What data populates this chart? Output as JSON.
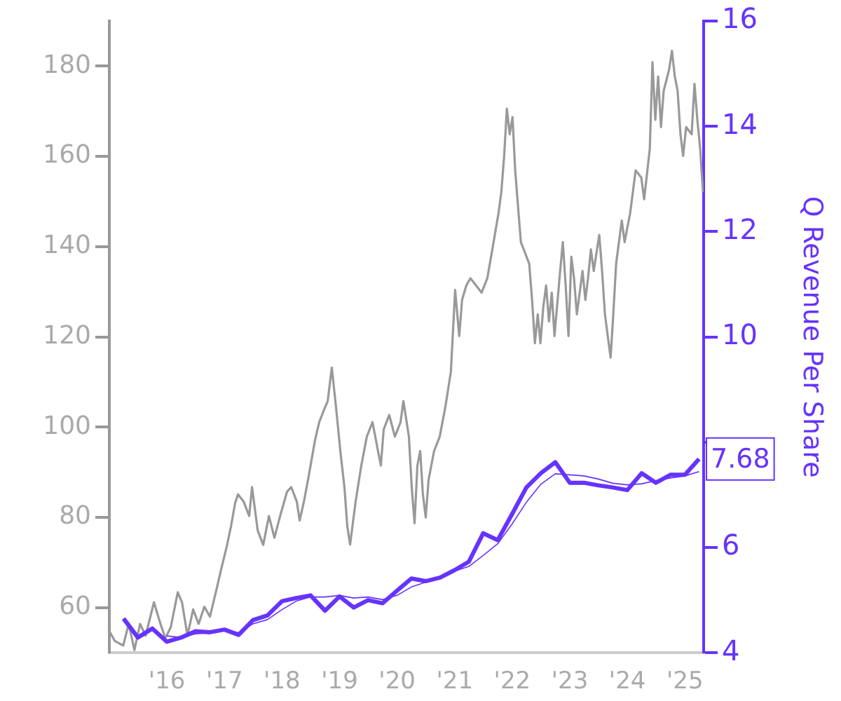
{
  "chart_data": {
    "type": "line",
    "y2label": "Q Revenue Per Share",
    "legend": false,
    "grid": false,
    "marker": "none",
    "xlim": [
      "2015-01-01",
      "2025-04-30"
    ],
    "xticks": [
      {
        "value": "2015-01-01",
        "label": null
      },
      {
        "value": "2016-01-01",
        "label": "'16"
      },
      {
        "value": "2017-01-01",
        "label": "'17"
      },
      {
        "value": "2018-01-01",
        "label": "'18"
      },
      {
        "value": "2019-01-01",
        "label": "'19"
      },
      {
        "value": "2020-01-01",
        "label": "'20"
      },
      {
        "value": "2021-01-01",
        "label": "'21"
      },
      {
        "value": "2022-01-01",
        "label": "'22"
      },
      {
        "value": "2023-01-01",
        "label": "'23"
      },
      {
        "value": "2024-01-01",
        "label": "'24"
      },
      {
        "value": "2025-01-01",
        "label": "'25"
      }
    ],
    "ylim": [
      50,
      190
    ],
    "yticks": [
      60,
      80,
      100,
      120,
      140,
      160,
      180
    ],
    "y2lim": [
      4,
      16
    ],
    "y2ticks": [
      4,
      6,
      {
        "value": 8,
        "label": null
      },
      10,
      12,
      14,
      16
    ],
    "annotations": [
      "7.68"
    ],
    "series": [
      {
        "color": "#999999",
        "axis": "y",
        "x": [
          "2015-01-01",
          "2015-02-05",
          "2015-03-30",
          "2015-05-04",
          "2015-06-09",
          "2015-07-15",
          "2015-08-19",
          "2015-10-11",
          "2015-11-16",
          "2015-12-22",
          "2016-01-26",
          "2016-03-10",
          "2016-04-06",
          "2016-05-11",
          "2016-06-16",
          "2016-07-21",
          "2016-08-26",
          "2016-10-01",
          "2016-11-14",
          "2016-12-11",
          "2017-01-16",
          "2017-02-12",
          "2017-03-10",
          "2017-03-28",
          "2017-05-03",
          "2017-06-07",
          "2017-06-25",
          "2017-07-31",
          "2017-09-04",
          "2017-10-10",
          "2017-11-14",
          "2017-12-20",
          "2018-02-02",
          "2018-03-01",
          "2018-04-05",
          "2018-04-23",
          "2018-05-20",
          "2018-06-15",
          "2018-07-30",
          "2018-08-25",
          "2018-09-30",
          "2018-10-18",
          "2018-11-13",
          "2018-12-10",
          "2019-01-06",
          "2019-02-01",
          "2019-02-19",
          "2019-03-09",
          "2019-04-13",
          "2019-05-19",
          "2019-06-23",
          "2019-07-29",
          "2019-09-02",
          "2019-09-20",
          "2019-10-08",
          "2019-11-12",
          "2019-12-18",
          "2020-01-23",
          "2020-02-10",
          "2020-03-16",
          "2020-04-03",
          "2020-04-21",
          "2020-05-09",
          "2020-05-27",
          "2020-06-13",
          "2020-07-01",
          "2020-07-19",
          "2020-08-23",
          "2020-09-28",
          "2020-11-02",
          "2020-12-08",
          "2021-01-04",
          "2021-01-30",
          "2021-02-17",
          "2021-03-16",
          "2021-04-11",
          "2021-05-17",
          "2021-06-21",
          "2021-07-27",
          "2021-08-31",
          "2021-10-06",
          "2021-10-24",
          "2021-11-11",
          "2021-11-28",
          "2021-12-16",
          "2022-01-03",
          "2022-01-20",
          "2022-02-07",
          "2022-02-25",
          "2022-03-15",
          "2022-04-19",
          "2022-05-07",
          "2022-05-25",
          "2022-06-12",
          "2022-06-29",
          "2022-07-17",
          "2022-08-04",
          "2022-08-22",
          "2022-09-09",
          "2022-09-26",
          "2022-11-01",
          "2022-11-18",
          "2022-12-06",
          "2022-12-24",
          "2023-01-11",
          "2023-01-28",
          "2023-02-15",
          "2023-03-23",
          "2023-04-10",
          "2023-04-27",
          "2023-05-15",
          "2023-06-02",
          "2023-07-07",
          "2023-07-25",
          "2023-08-12",
          "2023-09-17",
          "2023-10-04",
          "2023-10-22",
          "2023-11-27",
          "2023-12-15",
          "2024-01-01",
          "2024-01-19",
          "2024-02-23",
          "2024-03-30",
          "2024-04-17",
          "2024-05-23",
          "2024-06-09",
          "2024-06-27",
          "2024-07-15",
          "2024-08-02",
          "2024-08-19",
          "2024-09-23",
          "2024-10-11",
          "2024-10-29",
          "2024-11-16",
          "2024-12-04",
          "2024-12-21",
          "2025-01-09",
          "2025-02-13",
          "2025-03-03",
          "2025-03-21",
          "2025-04-08",
          "2025-04-26"
        ],
        "values": [
          54.8,
          52.6,
          51.6,
          56.4,
          50.6,
          56.4,
          53.8,
          61.2,
          57.0,
          53.2,
          55.7,
          63.4,
          61.2,
          53.8,
          59.6,
          56.4,
          60.2,
          58.0,
          64.4,
          68.5,
          73.6,
          78.1,
          83.2,
          85.1,
          83.5,
          80.3,
          86.7,
          77.1,
          73.9,
          80.3,
          75.5,
          80.3,
          85.7,
          86.7,
          83.5,
          79.3,
          83.5,
          88.3,
          97.2,
          101.1,
          104.3,
          105.8,
          113.2,
          104.3,
          94.7,
          86.7,
          78.1,
          74.0,
          83.5,
          91.5,
          97.9,
          101.1,
          94.7,
          91.5,
          99.5,
          102.7,
          97.9,
          101.1,
          105.8,
          97.9,
          86.7,
          78.7,
          91.5,
          94.7,
          85.1,
          80.0,
          88.3,
          94.7,
          97.9,
          104.3,
          112.3,
          130.4,
          120.2,
          128.2,
          131.4,
          133.0,
          131.4,
          129.8,
          133.0,
          140.0,
          147.4,
          152.1,
          160.1,
          170.6,
          164.9,
          168.7,
          156.9,
          148.9,
          141.0,
          139.4,
          136.2,
          128.2,
          118.6,
          125.0,
          118.6,
          126.6,
          131.4,
          123.4,
          129.8,
          120.2,
          134.6,
          141.0,
          131.4,
          120.2,
          137.8,
          133.0,
          125.0,
          134.6,
          128.2,
          133.0,
          139.4,
          134.6,
          142.6,
          134.6,
          125.0,
          115.4,
          125.0,
          136.2,
          145.8,
          141.0,
          144.2,
          147.4,
          156.9,
          155.3,
          150.5,
          161.7,
          180.9,
          168.1,
          177.7,
          166.5,
          174.5,
          179.3,
          183.4,
          177.7,
          174.5,
          164.9,
          160.1,
          166.5,
          164.9,
          176.1,
          168.1,
          161.7,
          152.1
        ]
      },
      {
        "color": "#6633ff",
        "axis": "y2",
        "x": [
          "2015-04-01",
          "2015-07-01",
          "2015-10-01",
          "2016-01-01",
          "2016-04-01",
          "2016-07-01",
          "2016-10-01",
          "2017-01-01",
          "2017-04-01",
          "2017-07-01",
          "2017-10-01",
          "2018-01-01",
          "2018-04-01",
          "2018-07-01",
          "2018-10-01",
          "2019-01-01",
          "2019-04-01",
          "2019-07-01",
          "2019-10-01",
          "2020-01-01",
          "2020-04-01",
          "2020-07-01",
          "2020-10-01",
          "2021-01-01",
          "2021-04-01",
          "2021-07-01",
          "2021-10-01",
          "2022-01-01",
          "2022-04-01",
          "2022-07-01",
          "2022-10-01",
          "2023-01-01",
          "2023-04-01",
          "2023-07-01",
          "2023-10-01",
          "2024-01-01",
          "2024-04-01",
          "2024-07-01",
          "2024-10-01",
          "2025-01-01",
          "2025-04-01"
        ],
        "values": [
          4.65,
          4.29,
          4.46,
          4.21,
          4.29,
          4.41,
          4.39,
          4.44,
          4.34,
          4.62,
          4.71,
          4.98,
          5.04,
          5.09,
          4.8,
          5.07,
          4.86,
          5.0,
          4.94,
          5.18,
          5.41,
          5.36,
          5.43,
          5.57,
          5.73,
          6.27,
          6.14,
          6.64,
          7.14,
          7.41,
          7.62,
          7.23,
          7.23,
          7.18,
          7.14,
          7.09,
          7.41,
          7.23,
          7.38,
          7.38,
          7.68
        ]
      },
      {
        "color": "#6633ff",
        "axis": "y2",
        "x": [
          "2016-01-01",
          "2016-04-01",
          "2016-07-01",
          "2016-10-01",
          "2017-01-01",
          "2017-04-01",
          "2017-07-01",
          "2017-10-01",
          "2018-01-01",
          "2018-04-01",
          "2018-07-01",
          "2018-10-01",
          "2019-01-01",
          "2019-04-01",
          "2019-07-01",
          "2019-10-01",
          "2020-01-01",
          "2020-04-01",
          "2020-07-01",
          "2020-10-01",
          "2021-01-01",
          "2021-04-01",
          "2021-07-01",
          "2021-10-01",
          "2022-01-01",
          "2022-04-01",
          "2022-07-01",
          "2022-10-01",
          "2023-01-01",
          "2023-04-01",
          "2023-07-01",
          "2023-10-01",
          "2024-01-01",
          "2024-04-01",
          "2024-07-01",
          "2024-10-01",
          "2025-01-01",
          "2025-04-01"
        ],
        "values": [
          4.32,
          4.29,
          4.36,
          4.38,
          4.42,
          4.38,
          4.55,
          4.63,
          4.82,
          4.98,
          5.06,
          5.06,
          5.09,
          5.04,
          5.06,
          5.01,
          5.09,
          5.25,
          5.34,
          5.45,
          5.55,
          5.64,
          5.85,
          6.07,
          6.45,
          6.86,
          7.2,
          7.4,
          7.38,
          7.36,
          7.3,
          7.22,
          7.19,
          7.21,
          7.27,
          7.32,
          7.36,
          7.44
        ]
      }
    ]
  }
}
